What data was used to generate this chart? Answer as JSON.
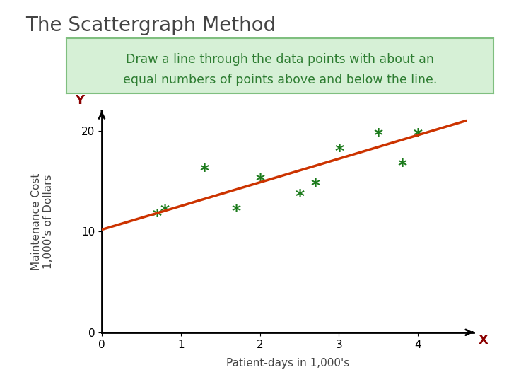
{
  "title": "The Scattergraph Method",
  "subtitle_line1": "Draw a line through the data points with about an",
  "subtitle_line2": "equal numbers of points above and below the line.",
  "subtitle_color": "#2e7d32",
  "subtitle_bg": "#d6f0d6",
  "subtitle_border": "#7fbf7f",
  "scatter_x": [
    0.7,
    0.8,
    1.3,
    1.7,
    2.0,
    2.5,
    2.7,
    3.0,
    3.5,
    3.8,
    4.0
  ],
  "scatter_y": [
    11.5,
    12.0,
    16.0,
    12.0,
    15.0,
    13.5,
    14.5,
    18.0,
    19.5,
    16.5,
    19.5
  ],
  "scatter_color": "#1a7a1a",
  "scatter_size": 160,
  "line_x": [
    0,
    4.6
  ],
  "line_y": [
    10.2,
    21.0
  ],
  "line_color": "#cc3300",
  "line_width": 2.5,
  "xlabel": "Patient-days in 1,000's",
  "ylabel_line1": "Maintenance Cost",
  "ylabel_line2": "1,000's of Dollars",
  "xlabel_color": "#444444",
  "ylabel_color": "#444444",
  "axis_label_x": "X",
  "axis_label_y": "Y",
  "axis_label_color": "#8b0000",
  "xlim": [
    0,
    4.7
  ],
  "ylim": [
    0,
    22
  ],
  "xticks": [
    0,
    1,
    2,
    3,
    4
  ],
  "yticks": [
    0,
    10,
    20
  ],
  "bg_color": "#ffffff",
  "title_color": "#444444",
  "title_fontsize": 20,
  "axis_arrow_color": "#000000",
  "tick_fontsize": 11,
  "label_fontsize": 11
}
